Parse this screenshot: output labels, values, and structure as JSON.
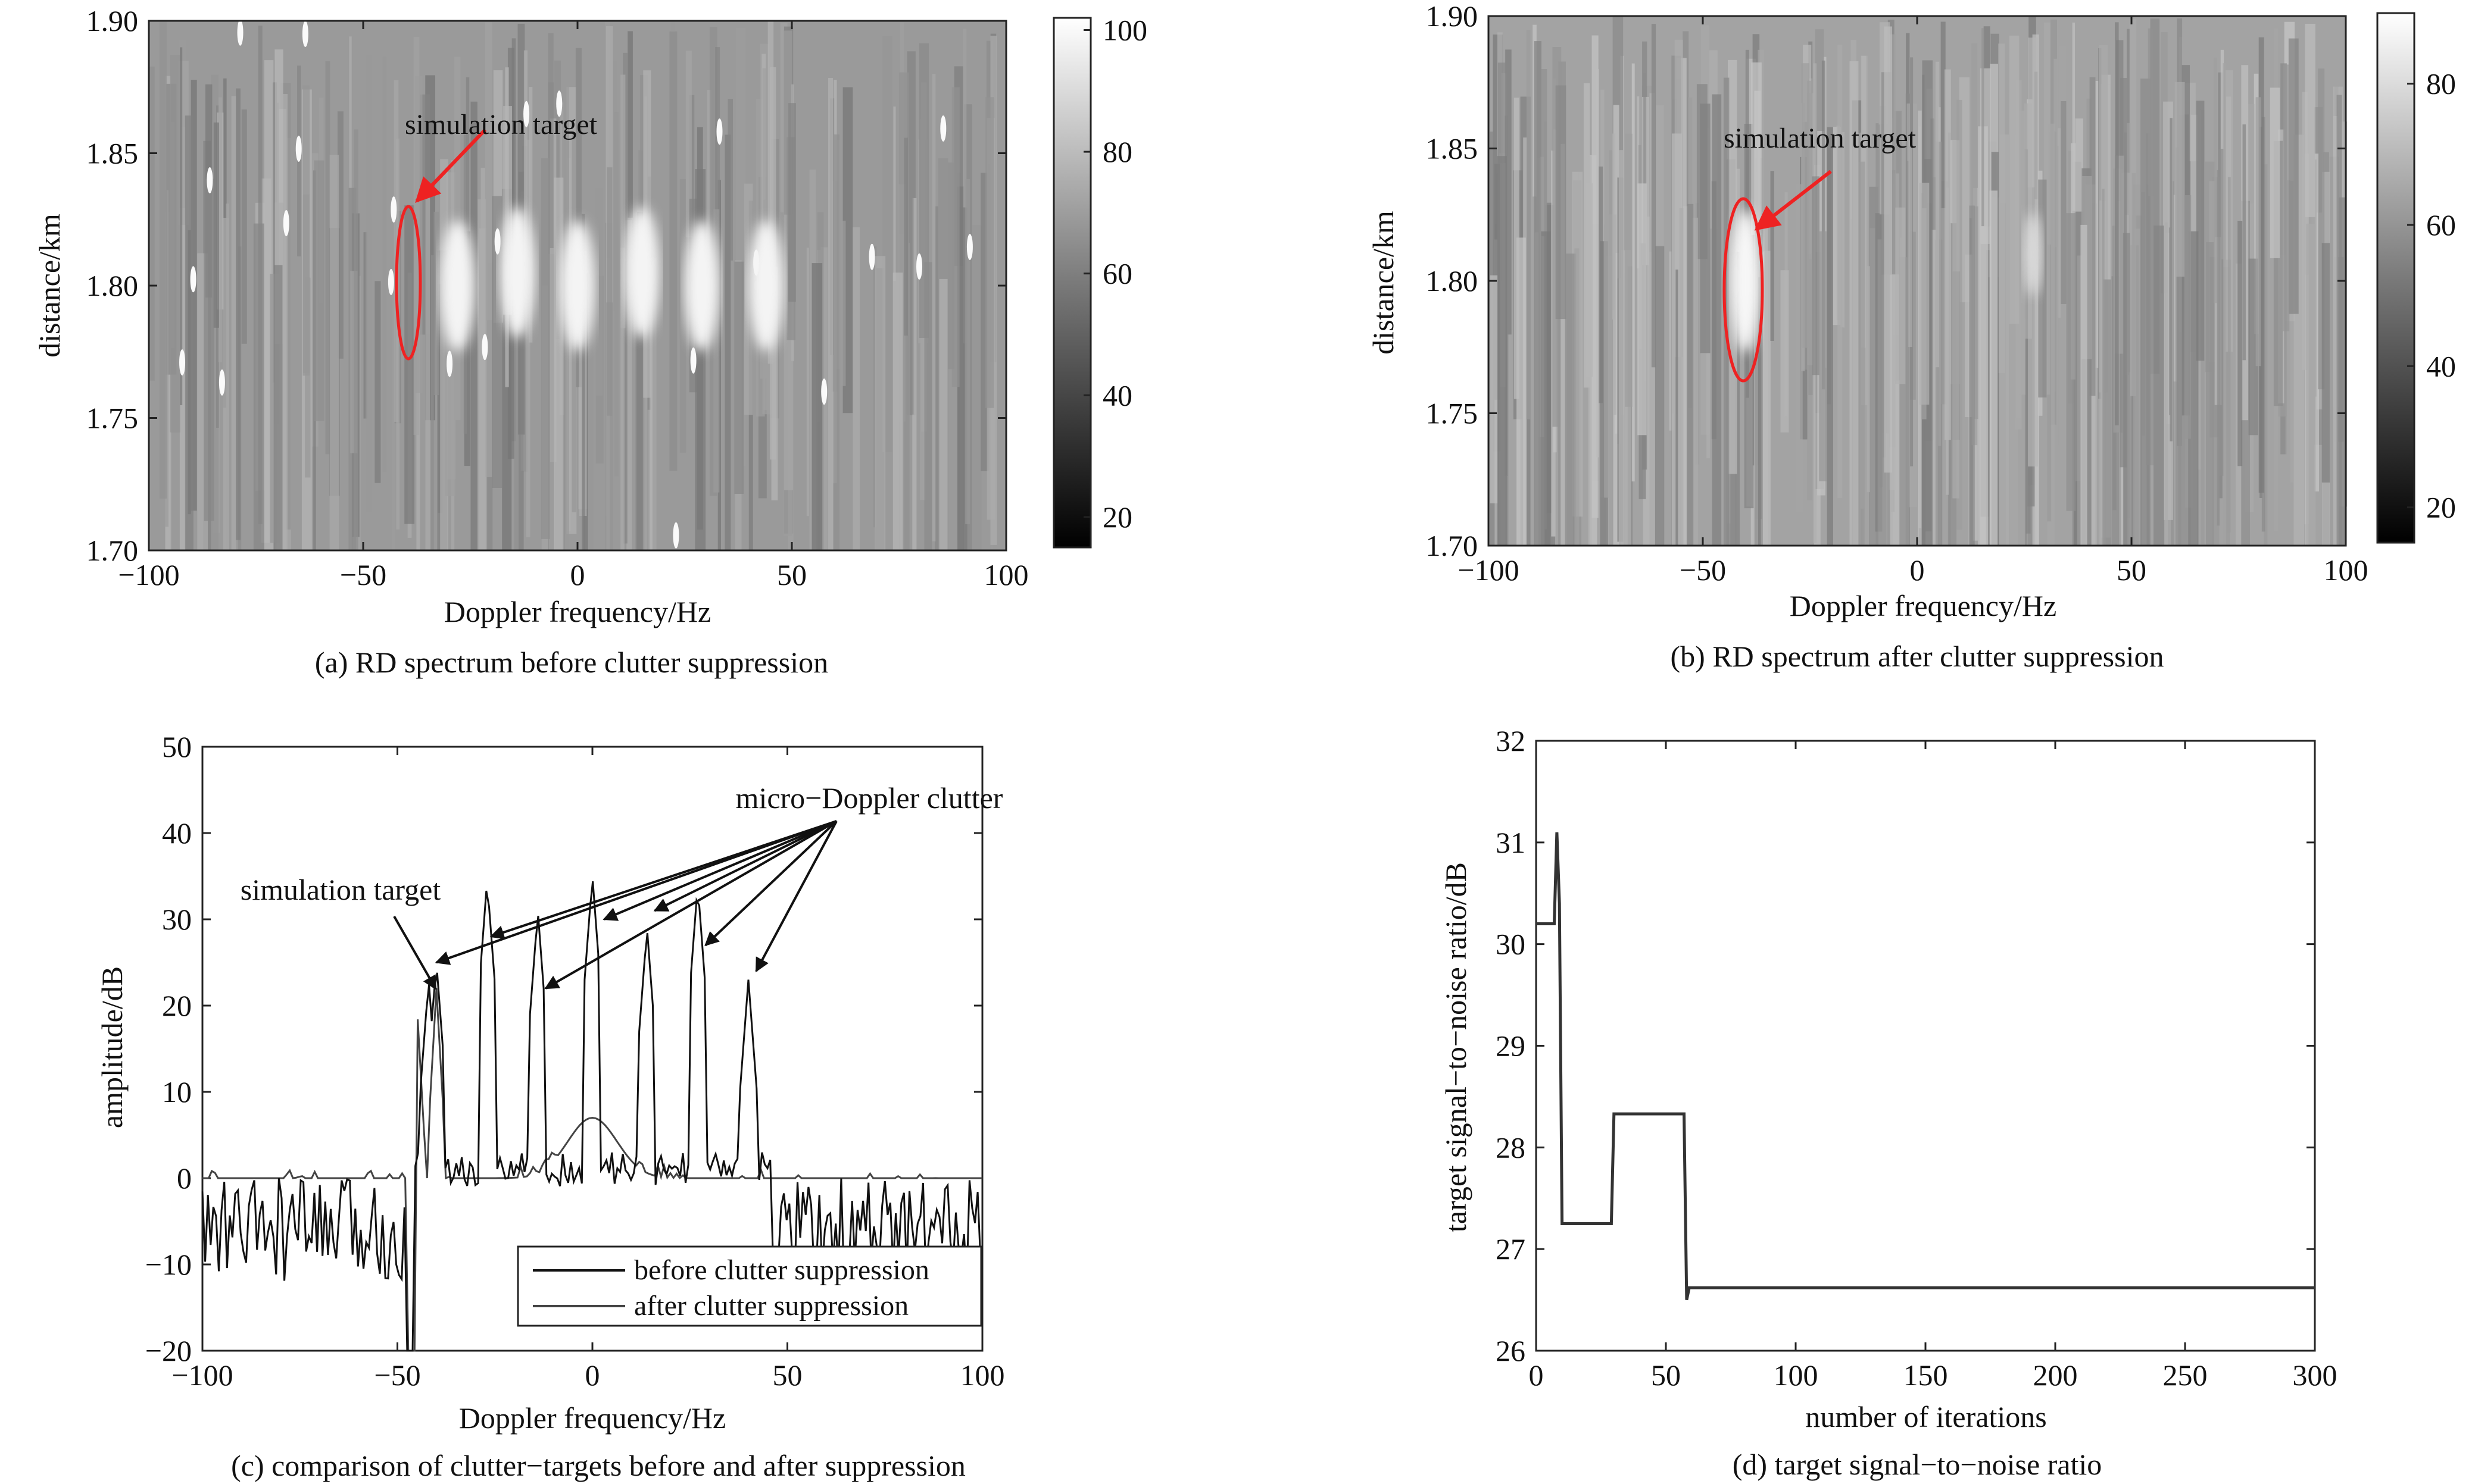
{
  "chart_data": [
    {
      "panel": "a",
      "type": "heatmap",
      "caption": "(a) RD spectrum before clutter suppression",
      "xlabel": "Doppler frequency/Hz",
      "ylabel": "distance/km",
      "xlim": [
        -100,
        100
      ],
      "ylim": [
        1.7,
        1.9
      ],
      "xticks": [
        -100,
        -50,
        0,
        50,
        100
      ],
      "yticks": [
        1.7,
        1.75,
        1.8,
        1.85,
        1.9
      ],
      "colorbar": {
        "range": [
          15,
          102
        ],
        "ticks": [
          20,
          40,
          60,
          80,
          100
        ]
      },
      "annotation": {
        "text": "simulation target",
        "x": -38,
        "y": 1.8
      },
      "peaks": [
        {
          "x": -28,
          "y": 1.8
        },
        {
          "x": -14,
          "y": 1.805
        },
        {
          "x": 0,
          "y": 1.8
        },
        {
          "x": 15,
          "y": 1.805
        },
        {
          "x": 29,
          "y": 1.8
        },
        {
          "x": 44,
          "y": 1.8
        }
      ]
    },
    {
      "panel": "b",
      "type": "heatmap",
      "caption": "(b) RD spectrum after clutter suppression",
      "xlabel": "Doppler frequency/Hz",
      "ylabel": "distance/km",
      "xlim": [
        -100,
        100
      ],
      "ylim": [
        1.7,
        1.9
      ],
      "xticks": [
        -100,
        -50,
        0,
        50,
        100
      ],
      "yticks": [
        1.7,
        1.75,
        1.8,
        1.85,
        1.9
      ],
      "colorbar": {
        "range": [
          15,
          90
        ],
        "ticks": [
          20,
          40,
          60,
          80
        ]
      },
      "annotation": {
        "text": "simulation target",
        "x": -40,
        "y": 1.8
      },
      "peaks": [
        {
          "x": -40,
          "y": 1.8
        },
        {
          "x": 27,
          "y": 1.81
        }
      ]
    },
    {
      "panel": "c",
      "type": "line",
      "caption": "(c) comparison of clutter−targets before and after suppression",
      "xlabel": "Doppler frequency/Hz",
      "ylabel": "amplitude/dB",
      "xlim": [
        -100,
        100
      ],
      "ylim": [
        -20,
        50
      ],
      "xticks": [
        -100,
        -50,
        0,
        50,
        100
      ],
      "yticks": [
        -20,
        -10,
        0,
        10,
        20,
        30,
        40,
        50
      ],
      "legend_position": "bottom-right",
      "series": [
        {
          "name": "before clutter suppression",
          "peaks": [
            {
              "x": -42,
              "y": 23
            },
            {
              "x": -40,
              "y": 25
            },
            {
              "x": -27,
              "y": 34.5
            },
            {
              "x": -14,
              "y": 31
            },
            {
              "x": 0,
              "y": 35
            },
            {
              "x": 14,
              "y": 29
            },
            {
              "x": 27,
              "y": 34
            },
            {
              "x": 40,
              "y": 23
            }
          ]
        },
        {
          "name": "after clutter suppression",
          "peaks": [
            {
              "x": -45,
              "y": 20
            },
            {
              "x": -40,
              "y": 22
            },
            {
              "x": 0,
              "y": 7
            }
          ]
        }
      ],
      "annotations": [
        {
          "text": "simulation target",
          "x": -40,
          "y": 24
        },
        {
          "text": "micro−Doppler clutter",
          "targets": [
            [
              -40,
              25
            ],
            [
              -26,
              28
            ],
            [
              -12,
              22
            ],
            [
              3,
              30
            ],
            [
              16,
              31
            ],
            [
              29,
              27
            ],
            [
              42,
              24
            ]
          ]
        }
      ]
    },
    {
      "panel": "d",
      "type": "line",
      "caption": "(d) target signal−to−noise ratio",
      "xlabel": "number of iterations",
      "ylabel": "target signal−to−noise ratio/dB",
      "xlim": [
        0,
        300
      ],
      "ylim": [
        26,
        32
      ],
      "xticks": [
        0,
        50,
        100,
        150,
        200,
        250,
        300
      ],
      "yticks": [
        26,
        27,
        28,
        29,
        30,
        31,
        32
      ],
      "series": [
        {
          "x": [
            0,
            7,
            8,
            9,
            10,
            11,
            29,
            30,
            57,
            58,
            59,
            60,
            100,
            300
          ],
          "y": [
            30.2,
            30.2,
            31.1,
            30.4,
            27.25,
            27.25,
            27.25,
            28.33,
            28.33,
            26.5,
            26.62,
            26.62,
            26.62,
            26.62
          ]
        }
      ]
    }
  ]
}
